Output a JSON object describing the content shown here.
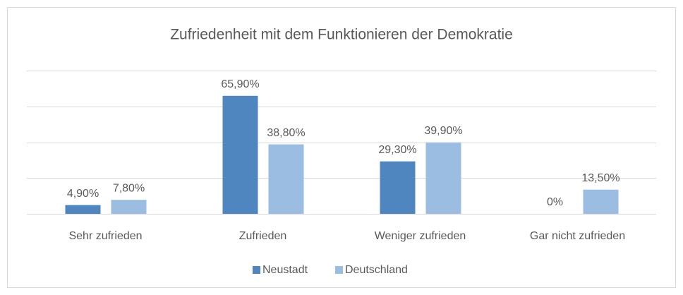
{
  "chart_data": {
    "type": "bar",
    "title": "Zufriedenheit mit dem Funktionieren der Demokratie",
    "categories": [
      "Sehr zufrieden",
      "Zufrieden",
      "Weniger zufrieden",
      "Gar nicht zufrieden"
    ],
    "series": [
      {
        "name": "Neustadt",
        "color": "#4f86c0",
        "values": [
          4.9,
          65.9,
          29.3,
          0
        ],
        "value_labels": [
          "4,90%",
          "65,90%",
          "29,30%",
          "0%"
        ]
      },
      {
        "name": "Deutschland",
        "color": "#9bbde1",
        "values": [
          7.8,
          38.8,
          39.9,
          13.5
        ],
        "value_labels": [
          "7,80%",
          "38,80%",
          "39,90%",
          "13,50%"
        ]
      }
    ],
    "ylim": [
      0,
      80
    ],
    "yticks": [
      0,
      20,
      40,
      60,
      80
    ],
    "grid": true,
    "legend": "bottom"
  }
}
